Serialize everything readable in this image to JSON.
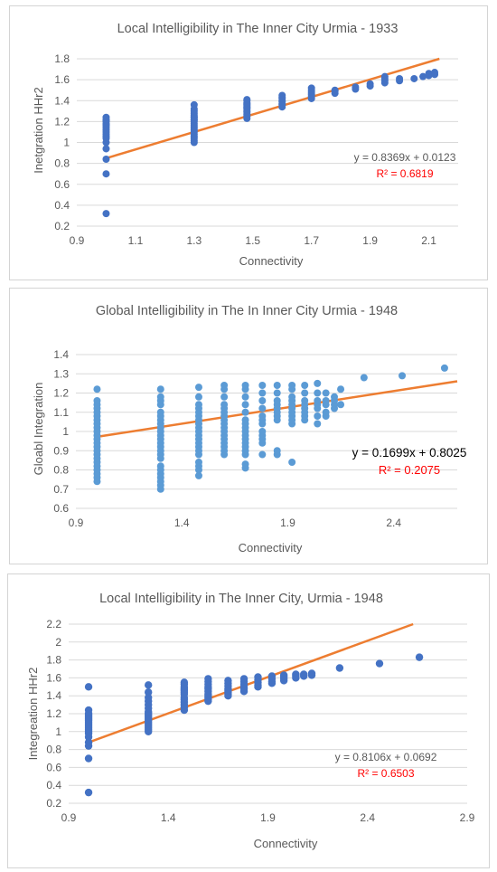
{
  "chart_data": [
    {
      "type": "scatter",
      "title": "Local Intelligibility in The Inner City Urmia - 1933",
      "xlabel": "Connectivity",
      "ylabel": "Inetgration HHr2",
      "xlim": [
        0.9,
        2.2
      ],
      "ylim": [
        0.2,
        1.8
      ],
      "xticks": [
        "0.9",
        "1.1",
        "1.3",
        "1.5",
        "1.7",
        "1.9",
        "2.1"
      ],
      "yticks": [
        "0.2",
        "0.4",
        "0.6",
        "0.8",
        "1",
        "1.2",
        "1.4",
        "1.6",
        "1.8"
      ],
      "grid": true,
      "point_color": "#4472c4",
      "trend_color": "#ed7d31",
      "trendline": {
        "slope": 0.8369,
        "intercept": 0.0123
      },
      "equation": "y = 0.8369x + 0.0123",
      "r2": "R² = 0.6819",
      "r2_color": "#ff0000",
      "series": [
        {
          "x": [
            1,
            1,
            1,
            1,
            1,
            1,
            1,
            1,
            1,
            1,
            1,
            1,
            1,
            1,
            1,
            1,
            1,
            1,
            1.3,
            1.3,
            1.3,
            1.3,
            1.3,
            1.3,
            1.3,
            1.3,
            1.3,
            1.3,
            1.3,
            1.3,
            1.3,
            1.3,
            1.3,
            1.3,
            1.3,
            1.3,
            1.3,
            1.3,
            1.48,
            1.48,
            1.48,
            1.48,
            1.48,
            1.48,
            1.48,
            1.48,
            1.48,
            1.48,
            1.48,
            1.48,
            1.48,
            1.48,
            1.6,
            1.6,
            1.6,
            1.6,
            1.6,
            1.6,
            1.6,
            1.6,
            1.7,
            1.7,
            1.7,
            1.7,
            1.7,
            1.7,
            1.78,
            1.78,
            1.78,
            1.85,
            1.85,
            1.9,
            1.9,
            1.95,
            1.95,
            1.95,
            1.95,
            2.0,
            2.0,
            2.05,
            2.08,
            2.1,
            2.1,
            2.12,
            2.12
          ],
          "y": [
            0.32,
            0.7,
            0.84,
            0.94,
            1.0,
            1.04,
            1.06,
            1.08,
            1.1,
            1.12,
            1.14,
            1.16,
            1.17,
            1.18,
            1.2,
            1.21,
            1.22,
            1.24,
            1.0,
            1.02,
            1.04,
            1.06,
            1.08,
            1.1,
            1.12,
            1.14,
            1.16,
            1.18,
            1.2,
            1.22,
            1.24,
            1.26,
            1.28,
            1.3,
            1.32,
            1.36,
            1.22,
            1.24,
            1.23,
            1.25,
            1.27,
            1.29,
            1.3,
            1.32,
            1.33,
            1.34,
            1.35,
            1.36,
            1.37,
            1.38,
            1.4,
            1.41,
            1.34,
            1.36,
            1.37,
            1.39,
            1.4,
            1.42,
            1.43,
            1.45,
            1.42,
            1.44,
            1.46,
            1.48,
            1.5,
            1.52,
            1.47,
            1.49,
            1.5,
            1.51,
            1.53,
            1.54,
            1.56,
            1.57,
            1.59,
            1.61,
            1.63,
            1.59,
            1.61,
            1.61,
            1.63,
            1.64,
            1.66,
            1.65,
            1.67
          ]
        }
      ]
    },
    {
      "type": "scatter",
      "title": "Global Intelligibility in The In Inner City Urmia - 1948",
      "xlabel": "Connectivity",
      "ylabel": "Gloabl Integration",
      "xlim": [
        0.9,
        2.7
      ],
      "ylim": [
        0.6,
        1.4
      ],
      "xticks": [
        "0.9",
        "1.4",
        "1.9",
        "2.4"
      ],
      "yticks": [
        "0.6",
        "0.7",
        "0.8",
        "0.9",
        "1",
        "1.1",
        "1.2",
        "1.3",
        "1.4"
      ],
      "grid": true,
      "point_color": "#5b9bd5",
      "trend_color": "#ed7d31",
      "trendline": {
        "slope": 0.1699,
        "intercept": 0.8025
      },
      "equation": "y = 0.1699x + 0.8025",
      "r2": "R² = 0.2075",
      "r2_color": "#ff0000",
      "series": [
        {
          "x": [
            1,
            1,
            1,
            1,
            1,
            1,
            1,
            1,
            1,
            1,
            1,
            1,
            1,
            1,
            1,
            1,
            1,
            1,
            1,
            1,
            1,
            1,
            1,
            1.3,
            1.3,
            1.3,
            1.3,
            1.3,
            1.3,
            1.3,
            1.3,
            1.3,
            1.3,
            1.3,
            1.3,
            1.3,
            1.3,
            1.3,
            1.3,
            1.3,
            1.3,
            1.3,
            1.3,
            1.3,
            1.3,
            1.3,
            1.3,
            1.48,
            1.48,
            1.48,
            1.48,
            1.48,
            1.48,
            1.48,
            1.48,
            1.48,
            1.48,
            1.48,
            1.48,
            1.48,
            1.48,
            1.48,
            1.48,
            1.48,
            1.48,
            1.48,
            1.48,
            1.6,
            1.6,
            1.6,
            1.6,
            1.6,
            1.6,
            1.6,
            1.6,
            1.6,
            1.6,
            1.6,
            1.6,
            1.6,
            1.6,
            1.6,
            1.6,
            1.6,
            1.7,
            1.7,
            1.7,
            1.7,
            1.7,
            1.7,
            1.7,
            1.7,
            1.7,
            1.7,
            1.7,
            1.7,
            1.7,
            1.7,
            1.7,
            1.7,
            1.7,
            1.78,
            1.78,
            1.78,
            1.78,
            1.78,
            1.78,
            1.78,
            1.78,
            1.78,
            1.78,
            1.78,
            1.78,
            1.85,
            1.85,
            1.85,
            1.85,
            1.85,
            1.85,
            1.85,
            1.85,
            1.85,
            1.85,
            1.92,
            1.92,
            1.92,
            1.92,
            1.92,
            1.92,
            1.92,
            1.92,
            1.92,
            1.92,
            1.92,
            1.98,
            1.98,
            1.98,
            1.98,
            1.98,
            1.98,
            1.98,
            1.98,
            2.04,
            2.04,
            2.04,
            2.04,
            2.04,
            2.04,
            2.04,
            2.08,
            2.08,
            2.08,
            2.08,
            2.08,
            2.12,
            2.12,
            2.12,
            2.12,
            2.15,
            2.15,
            2.26,
            2.44,
            2.64
          ],
          "y": [
            0.74,
            0.76,
            0.78,
            0.8,
            0.82,
            0.84,
            0.86,
            0.88,
            0.9,
            0.92,
            0.94,
            0.96,
            0.98,
            1.0,
            1.02,
            1.04,
            1.06,
            1.08,
            1.1,
            1.12,
            1.14,
            1.16,
            1.22,
            0.7,
            0.72,
            0.74,
            0.76,
            0.78,
            0.8,
            0.82,
            0.86,
            0.88,
            0.9,
            0.92,
            0.94,
            0.96,
            0.98,
            1.0,
            1.02,
            1.04,
            1.06,
            1.08,
            1.1,
            1.14,
            1.16,
            1.18,
            1.22,
            0.77,
            0.8,
            0.82,
            0.84,
            0.88,
            0.9,
            0.92,
            0.94,
            0.96,
            0.98,
            1.0,
            1.02,
            1.04,
            1.06,
            1.08,
            1.1,
            1.12,
            1.14,
            1.18,
            1.23,
            0.88,
            0.9,
            0.92,
            0.94,
            0.96,
            0.98,
            1.0,
            1.02,
            1.04,
            1.06,
            1.08,
            1.1,
            1.12,
            1.14,
            1.18,
            1.22,
            1.24,
            0.81,
            0.83,
            0.88,
            0.9,
            0.92,
            0.94,
            0.96,
            0.98,
            1.0,
            1.02,
            1.04,
            1.06,
            1.1,
            1.14,
            1.18,
            1.22,
            1.24,
            0.88,
            0.94,
            0.96,
            0.98,
            1.0,
            1.04,
            1.06,
            1.08,
            1.12,
            1.16,
            1.2,
            1.24,
            0.88,
            0.9,
            1.06,
            1.08,
            1.1,
            1.12,
            1.14,
            1.16,
            1.2,
            1.24,
            0.84,
            1.04,
            1.06,
            1.08,
            1.1,
            1.12,
            1.14,
            1.16,
            1.18,
            1.22,
            1.24,
            1.06,
            1.08,
            1.1,
            1.12,
            1.14,
            1.16,
            1.2,
            1.24,
            1.04,
            1.08,
            1.12,
            1.14,
            1.16,
            1.2,
            1.25,
            1.08,
            1.1,
            1.14,
            1.16,
            1.2,
            1.12,
            1.14,
            1.16,
            1.18,
            1.14,
            1.22,
            1.28,
            1.29,
            1.33
          ]
        }
      ]
    },
    {
      "type": "scatter",
      "title": "Local Intelligibility in The Inner City, Urmia - 1948",
      "xlabel": "Connectivity",
      "ylabel": "Integreation  HHr2",
      "xlim": [
        0.9,
        2.9
      ],
      "ylim": [
        0.2,
        2.2
      ],
      "xticks": [
        "0.9",
        "1.4",
        "1.9",
        "2.4",
        "2.9"
      ],
      "yticks": [
        "0.2",
        "0.4",
        "0.6",
        "0.8",
        "1",
        "1.2",
        "1.4",
        "1.6",
        "1.8",
        "2",
        "2.2"
      ],
      "grid": true,
      "point_color": "#4472c4",
      "trend_color": "#ed7d31",
      "trendline": {
        "slope": 0.8106,
        "intercept": 0.0692
      },
      "equation": "y = 0.8106x + 0.0692",
      "r2": "R² = 0.6503",
      "r2_color": "#ff0000",
      "series": [
        {
          "x": [
            1,
            1,
            1,
            1,
            1,
            1,
            1,
            1,
            1,
            1,
            1,
            1,
            1,
            1,
            1,
            1,
            1,
            1,
            1,
            1.3,
            1.3,
            1.3,
            1.3,
            1.3,
            1.3,
            1.3,
            1.3,
            1.3,
            1.3,
            1.3,
            1.3,
            1.3,
            1.3,
            1.3,
            1.3,
            1.3,
            1.3,
            1.48,
            1.48,
            1.48,
            1.48,
            1.48,
            1.48,
            1.48,
            1.48,
            1.48,
            1.48,
            1.48,
            1.48,
            1.48,
            1.6,
            1.6,
            1.6,
            1.6,
            1.6,
            1.6,
            1.6,
            1.6,
            1.6,
            1.6,
            1.6,
            1.7,
            1.7,
            1.7,
            1.7,
            1.7,
            1.7,
            1.7,
            1.7,
            1.78,
            1.78,
            1.78,
            1.78,
            1.78,
            1.78,
            1.85,
            1.85,
            1.85,
            1.85,
            1.85,
            1.92,
            1.92,
            1.92,
            1.92,
            1.98,
            1.98,
            1.98,
            1.98,
            2.04,
            2.04,
            2.04,
            2.08,
            2.08,
            2.12,
            2.12,
            2.26,
            2.46,
            2.66
          ],
          "y": [
            0.32,
            0.7,
            0.84,
            0.88,
            0.94,
            0.98,
            1.0,
            1.02,
            1.04,
            1.06,
            1.08,
            1.1,
            1.12,
            1.14,
            1.16,
            1.18,
            1.2,
            1.24,
            1.5,
            1.0,
            1.02,
            1.04,
            1.06,
            1.08,
            1.1,
            1.12,
            1.14,
            1.16,
            1.18,
            1.2,
            1.22,
            1.26,
            1.3,
            1.34,
            1.38,
            1.44,
            1.52,
            1.24,
            1.27,
            1.3,
            1.33,
            1.36,
            1.38,
            1.42,
            1.44,
            1.46,
            1.48,
            1.5,
            1.53,
            1.55,
            1.34,
            1.36,
            1.38,
            1.4,
            1.42,
            1.45,
            1.48,
            1.5,
            1.53,
            1.56,
            1.59,
            1.4,
            1.42,
            1.44,
            1.46,
            1.48,
            1.51,
            1.54,
            1.57,
            1.45,
            1.48,
            1.5,
            1.53,
            1.56,
            1.59,
            1.5,
            1.52,
            1.55,
            1.58,
            1.61,
            1.54,
            1.56,
            1.59,
            1.62,
            1.57,
            1.59,
            1.61,
            1.63,
            1.6,
            1.62,
            1.64,
            1.62,
            1.64,
            1.63,
            1.65,
            1.71,
            1.76,
            1.83
          ]
        }
      ]
    }
  ]
}
